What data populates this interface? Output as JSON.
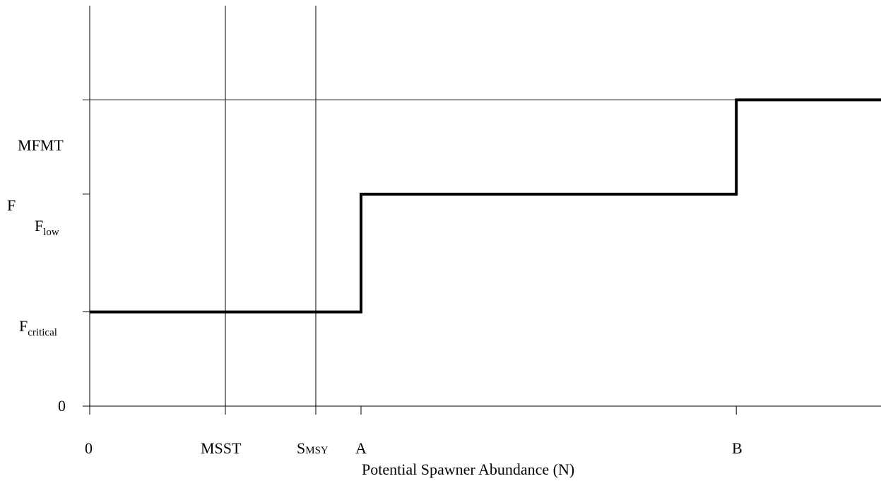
{
  "chart_data": {
    "type": "line",
    "subtype": "step",
    "title": "",
    "xlabel": "Potential Spawner Abundance (N)",
    "ylabel": "F",
    "y_ticks": [
      {
        "key": "zero",
        "label": "0",
        "sub": "",
        "value": 0
      },
      {
        "key": "fcritical",
        "label": "F",
        "sub": "critical",
        "value": 1
      },
      {
        "key": "flow",
        "label": "F",
        "sub": "low",
        "value": 2.25
      },
      {
        "key": "mfmt",
        "label": "MFMT",
        "sub": "",
        "value": 3.25
      }
    ],
    "x_ticks": [
      {
        "key": "zero",
        "label": "0",
        "sub": "",
        "value": 0
      },
      {
        "key": "msst",
        "label": "MSST",
        "sub": "",
        "value": 3
      },
      {
        "key": "smsy",
        "label": "S",
        "sub": "MSY",
        "value": 5
      },
      {
        "key": "a",
        "label": "A",
        "sub": "",
        "value": 6
      },
      {
        "key": "b",
        "label": "B",
        "sub": "",
        "value": 14.3
      }
    ],
    "xlim": [
      0,
      17.5
    ],
    "ylim": [
      0,
      4.25
    ],
    "vertical_reference_lines": [
      0,
      3,
      5
    ],
    "horizontal_reference_lines": [
      3.25
    ],
    "series": [
      {
        "x": [
          0,
          6,
          6,
          14.3,
          14.3,
          17.5
        ],
        "y": [
          1,
          1,
          2.25,
          2.25,
          3.25,
          3.25
        ]
      }
    ]
  }
}
